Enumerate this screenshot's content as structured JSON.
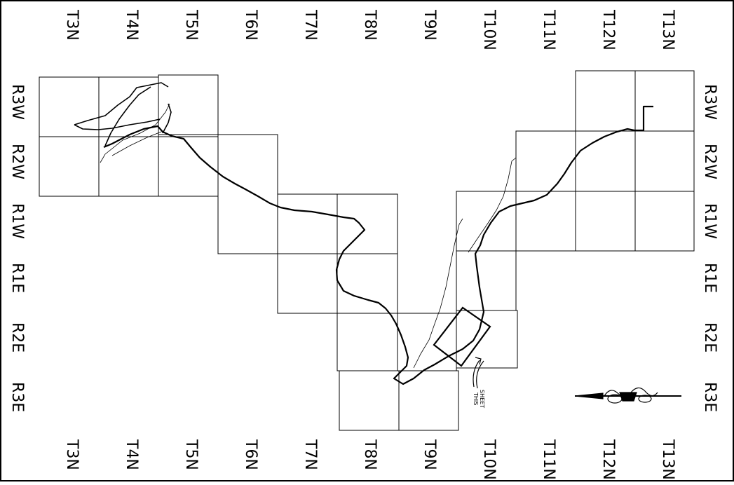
{
  "top_labels": [
    "T3N",
    "T4N",
    "T5N",
    "T6N",
    "T7N",
    "T8N",
    "T9N",
    "T10N",
    "T11N",
    "T12N",
    "T13N"
  ],
  "bottom_labels": [
    "T3N",
    "T4N",
    "T5N",
    "T6N",
    "T7N",
    "T8N",
    "T9N",
    "T10N",
    "T11N",
    "T12N",
    "T13N"
  ],
  "left_labels": [
    "R3W",
    "R2W",
    "R1W",
    "R1E",
    "R2E",
    "R3E"
  ],
  "right_labels": [
    "R3W",
    "R2W",
    "R1W",
    "R1E",
    "R2E",
    "R3E"
  ],
  "callout": {
    "line1": "THIS",
    "line2": "SHEET"
  },
  "north_arrow": "north-arrow-icon"
}
